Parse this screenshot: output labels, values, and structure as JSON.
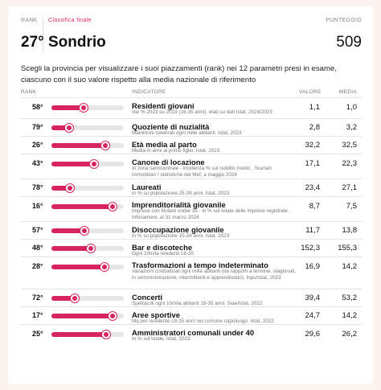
{
  "header": {
    "rank_label": "RANK",
    "category_label": "Classifica finale",
    "score_label": "PUNTEGGIO",
    "rank": "27°",
    "province": "Sondrio",
    "score": "509"
  },
  "intro": "Scegli la provincia per visualizzare i suoi piazzamenti (rank) nei 12 parametri presi in esame, ciascuno con il suo valore rispetto alla media nazionale di riferimento",
  "table": {
    "headers": {
      "rank": "RANK",
      "indicator": "INDICATORE",
      "value": "VALORE",
      "average": "MEDIA"
    },
    "accent_color": "#d6245e",
    "total_provinces": 107,
    "rows": [
      {
        "rank": "58°",
        "title": "Residenti giovani",
        "desc": "Var % 2023 su 2019 (18-35 anni). elab su dati Istat, 2024/2023",
        "value": "1,1",
        "average": "1,0",
        "fraction": 0.46
      },
      {
        "rank": "79°",
        "title": "Quoziente di nuzialità",
        "desc": "Matrimoni celebrati ogni mille abitanti. Istat, 2023",
        "value": "2,8",
        "average": "3,2",
        "fraction": 0.26
      },
      {
        "rank": "26°",
        "title": "Età media al parto",
        "desc": "Media in anni al primo figlio. Istat, 2023",
        "value": "32,2",
        "average": "32,5",
        "fraction": 0.76
      },
      {
        "rank": "43°",
        "title": "Canone di locazione",
        "desc": "In zona semicentrale - incidenza % sul reddito medio . Scenari immobiliari / statistiche del Mef, a maggio 2024",
        "value": "17,1",
        "average": "22,3",
        "fraction": 0.6
      },
      {
        "rank": "78°",
        "title": "Laureati",
        "desc": "In % su popolazione 25-39 anni. Istat, 2023",
        "value": "23,4",
        "average": "27,1",
        "fraction": 0.27
      },
      {
        "rank": "16°",
        "title": "Imprenditorialità giovanile",
        "desc": "Imprese con titolare under 35 - in % sul totale delle imprese registrate . Infocamere, al 31 marzo 2024",
        "value": "8,7",
        "average": "7,5",
        "fraction": 0.86
      },
      {
        "rank": "57°",
        "title": "Disoccupazione giovanile",
        "desc": "In % su popolazione 15-34 anni. Istat, 2023",
        "value": "11,7",
        "average": "13,8",
        "fraction": 0.47
      },
      {
        "rank": "48°",
        "title": "Bar e discoteche",
        "desc": "Ogni 10mila residenti 18-35",
        "value": "152,3",
        "average": "155,3",
        "fraction": 0.56
      },
      {
        "rank": "28°",
        "title": "Trasformazioni a tempo indeterminato",
        "desc": "Variazioni contrattuali ogni mille abitanti (da rapporti a termine, stagionali, in somministrazione, intermittenti e apprendistato). Inps/Istat, 2023",
        "value": "16,9",
        "average": "14,2",
        "fraction": 0.74
      },
      {
        "rank": "72°",
        "title": "Concerti",
        "desc": "Spettacoli ogni 10mila abitanti 18-35 anni. Siae/Istat, 2022",
        "value": "39,4",
        "average": "53,2",
        "fraction": 0.33
      },
      {
        "rank": "17°",
        "title": "Aree sportive",
        "desc": "Mq per residente 18-35 anni nel comune capoluogo. Istat, 2022",
        "value": "24,7",
        "average": "14,2",
        "fraction": 0.85
      },
      {
        "rank": "25°",
        "title": "Amministratori comunali under 40",
        "desc": "In % sul totale. Istat, 2023",
        "value": "29,6",
        "average": "26,2",
        "fraction": 0.77
      }
    ]
  }
}
